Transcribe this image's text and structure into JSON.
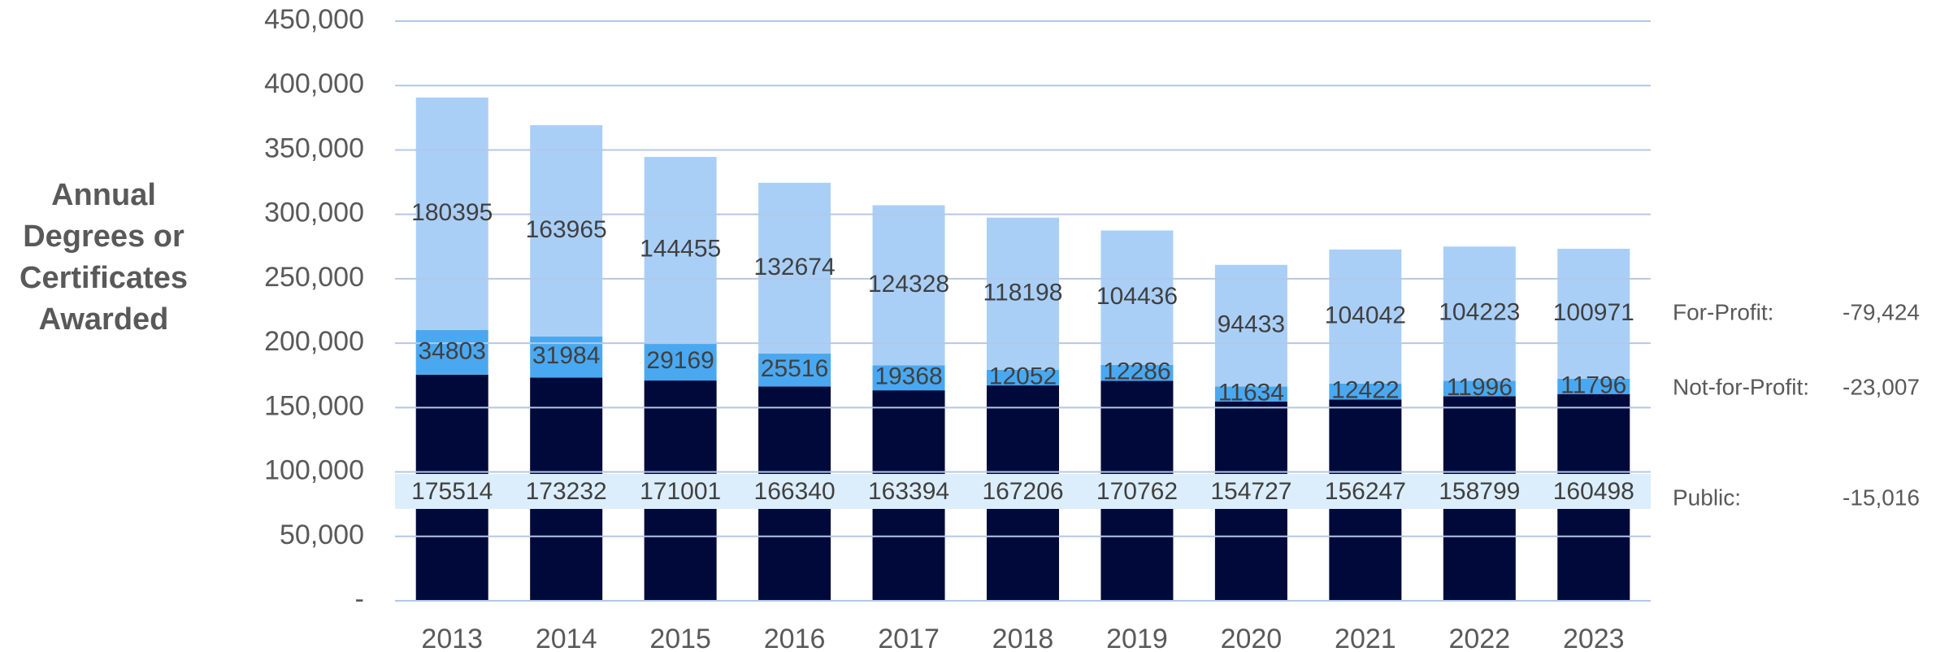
{
  "chart_data": {
    "type": "stacked_bar",
    "ylabel": "Annual Degrees or Certificates Awarded",
    "categories": [
      "2013",
      "2014",
      "2015",
      "2016",
      "2017",
      "2018",
      "2019",
      "2020",
      "2021",
      "2022",
      "2023"
    ],
    "series": [
      {
        "name": "Public:",
        "color": "#000a3a",
        "values": [
          175514,
          173232,
          171001,
          166340,
          163394,
          167206,
          170762,
          154727,
          156247,
          158799,
          160498
        ],
        "change": -15016,
        "change_label": "-15,016"
      },
      {
        "name": "Not-for-Profit:",
        "color": "#4aa8f0",
        "values": [
          34803,
          31984,
          29169,
          25516,
          19368,
          12052,
          12286,
          11634,
          12422,
          11996,
          11796
        ],
        "change": -23007,
        "change_label": "-23,007"
      },
      {
        "name": "For-Profit:",
        "color": "#aacff7",
        "values": [
          180395,
          163965,
          144455,
          132674,
          124328,
          118198,
          104436,
          94433,
          104042,
          104223,
          100971
        ],
        "change": -79424,
        "change_label": "-79,424"
      }
    ],
    "ylim": [
      0,
      450000
    ],
    "yticks": [
      {
        "value": 0,
        "label": "-"
      },
      {
        "value": 50000,
        "label": "50,000"
      },
      {
        "value": 100000,
        "label": "100,000"
      },
      {
        "value": 150000,
        "label": "150,000"
      },
      {
        "value": 200000,
        "label": "200,000"
      },
      {
        "value": 250000,
        "label": "250,000"
      },
      {
        "value": 300000,
        "label": "300,000"
      },
      {
        "value": 350000,
        "label": "350,000"
      },
      {
        "value": 400000,
        "label": "400,000"
      },
      {
        "value": 450000,
        "label": "450,000"
      }
    ],
    "grid": true
  }
}
